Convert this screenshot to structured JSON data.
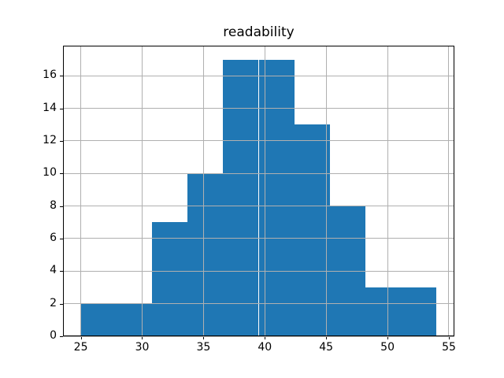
{
  "figure": {
    "title": "readability"
  },
  "chart_data": {
    "type": "bar",
    "subtype": "histogram",
    "title": "readability",
    "xlabel": "",
    "ylabel": "",
    "bin_edges": [
      25.0,
      27.9,
      30.8,
      33.7,
      36.6,
      39.5,
      42.4,
      45.3,
      48.2,
      51.1,
      54.0
    ],
    "counts": [
      2,
      2,
      7,
      10,
      17,
      17,
      13,
      8,
      3,
      3
    ],
    "x_ticks": [
      25,
      30,
      35,
      40,
      45,
      50,
      55
    ],
    "y_ticks": [
      0,
      2,
      4,
      6,
      8,
      10,
      12,
      14,
      16
    ],
    "xlim": [
      23.55,
      55.45
    ],
    "ylim": [
      0,
      17.85
    ],
    "grid": true,
    "legend": "none",
    "colors": {
      "bar": "#1f77b4",
      "grid": "#b0b0b0",
      "spine": "#000000",
      "text": "#000000",
      "background": "#ffffff"
    }
  }
}
